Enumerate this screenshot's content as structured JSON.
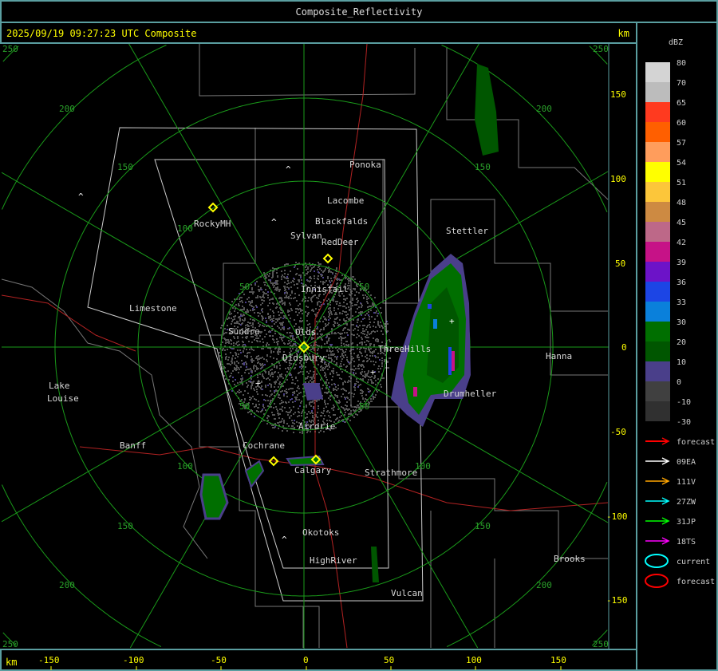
{
  "window_title": "Composite_Reflectivity",
  "header": {
    "timestamp": "2025/09/19 09:27:23 UTC Composite",
    "unit_top": "km"
  },
  "bottom_axis": {
    "unit": "km",
    "ticks": [
      "-150",
      "-100",
      "-50",
      "0",
      "50",
      "100",
      "150"
    ]
  },
  "right_axis": {
    "ticks": [
      "150",
      "100",
      "50",
      "0",
      "-50",
      "-100",
      "-150"
    ]
  },
  "range_ring_labels": [
    "50",
    "100",
    "150",
    "200",
    "250"
  ],
  "legend": {
    "unit": "dBZ",
    "labels": [
      "80",
      "70",
      "65",
      "60",
      "57",
      "54",
      "51",
      "48",
      "45",
      "42",
      "39",
      "36",
      "33",
      "30",
      "20",
      "10",
      "0",
      "-10",
      "-30"
    ],
    "colors": [
      "#d4d4d4",
      "#bcbcbc",
      "#ff3a1f",
      "#ff5f00",
      "#ff9d5c",
      "#ffff00",
      "#fcc63a",
      "#cd8a42",
      "#bd6888",
      "#c61287",
      "#6c13c8",
      "#1c45e5",
      "#0a80db",
      "#006f00",
      "#005600",
      "#4a3f8a",
      "#404040",
      "#303030"
    ]
  },
  "tracks": [
    {
      "label": "forecast",
      "color": "#ff0000"
    },
    {
      "label": "09EA",
      "color": "#ffffff"
    },
    {
      "label": "111V",
      "color": "#ffa500"
    },
    {
      "label": "27ZW",
      "color": "#00ffff"
    },
    {
      "label": "31JP",
      "color": "#00ff00"
    },
    {
      "label": "18TS",
      "color": "#ff00ff"
    }
  ],
  "cells": [
    {
      "label": "current",
      "color": "#00ffff"
    },
    {
      "label": "forecast",
      "color": "#ff0000"
    }
  ],
  "places": {
    "ponoka": "Ponoka",
    "lacombe": "Lacombe",
    "blackfalds": "Blackfalds",
    "sylvan": "Sylvan",
    "reddeer": "RedDeer",
    "rockymh": "RockyMH",
    "stettler": "Stettler",
    "innisfail": "Innisfail",
    "limestone": "Limestone",
    "sundre": "Sundre",
    "olds": "Olds",
    "didsbury": "Didsbury",
    "threehills": "ThreeHills",
    "hanna": "Hanna",
    "drumheller": "Drumheller",
    "lake": "Lake",
    "louise": "Louise",
    "airdrie": "Airdrie",
    "banff": "Banff",
    "cochrane": "Cochrane",
    "calgary": "Calgary",
    "strathmore": "Strathmore",
    "okotoks": "Okotoks",
    "highriver": "HighRiver",
    "brooks": "Brooks",
    "vulcan": "Vulcan"
  }
}
